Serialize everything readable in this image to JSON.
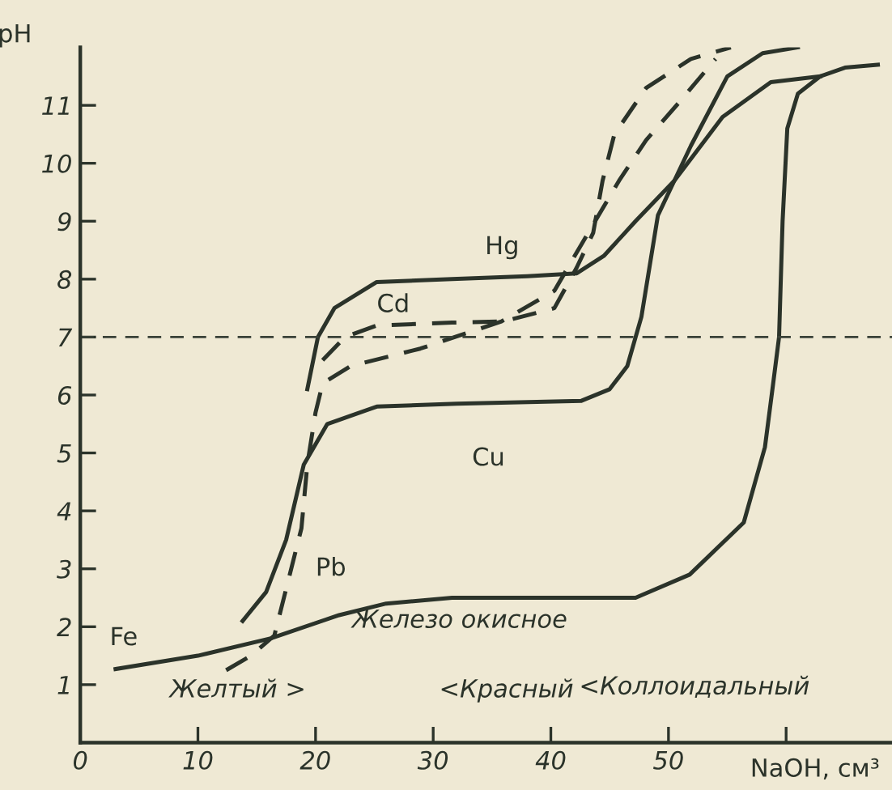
{
  "chart_data": {
    "type": "line",
    "xlabel": "NaOH, см³",
    "ylabel": "pH",
    "xlim": [
      0,
      69
    ],
    "ylim": [
      0,
      12
    ],
    "xticks": [
      0,
      10,
      20,
      30,
      40,
      50,
      {
        "value": 60,
        "label": null
      }
    ],
    "yticks": [
      1,
      2,
      3,
      4,
      5,
      6,
      7,
      8,
      9,
      10,
      11
    ],
    "grid": false,
    "legend": false,
    "marker": "none",
    "ref_lines": [
      {
        "axis": "y",
        "value": 7,
        "color": "#3a4238",
        "line_style": "dashed"
      }
    ],
    "series": [
      {
        "name": "Fe",
        "color": "#2b332a",
        "line_style": "solid",
        "x": [
          3.0,
          10,
          16.2,
          22,
          26,
          31.6,
          40,
          47.2,
          51.8,
          56.4,
          58.2,
          58.9,
          59.4,
          59.7,
          60.1,
          61,
          62.9,
          65,
          67.8
        ],
        "values": [
          1.27,
          1.5,
          1.8,
          2.2,
          2.4,
          2.5,
          2.5,
          2.5,
          2.9,
          3.8,
          5.1,
          6.2,
          7.0,
          9.0,
          10.6,
          11.2,
          11.5,
          11.65,
          11.7
        ]
      },
      {
        "name": "Hg",
        "color": "#2b332a",
        "line_style": "solid",
        "x": [
          19.3,
          20.2,
          21.6,
          25.2,
          31.6,
          38,
          42.2,
          44.5,
          47.2,
          50.5,
          54.6,
          58.7,
          62.9
        ],
        "values": [
          6.1,
          7.0,
          7.5,
          7.95,
          8.0,
          8.05,
          8.1,
          8.4,
          9.0,
          9.7,
          10.8,
          11.4,
          11.5
        ]
      },
      {
        "name": "Cu",
        "color": "#2b332a",
        "line_style": "solid",
        "x": [
          13.8,
          15.8,
          17.5,
          19.0,
          21.0,
          25.2,
          32,
          42.6,
          45,
          46.5,
          47.7,
          49.1,
          51.9,
          55.0,
          58,
          61
        ],
        "values": [
          2.1,
          2.6,
          3.5,
          4.8,
          5.5,
          5.8,
          5.85,
          5.9,
          6.1,
          6.5,
          7.35,
          9.1,
          10.3,
          11.5,
          11.9,
          12.0
        ]
      },
      {
        "name": "Cd",
        "color": "#2b332a",
        "line_style": "dashed",
        "x": [
          20.6,
          22.5,
          25.2,
          31.6,
          36,
          40.3,
          42.2,
          43.6,
          44.4,
          45.4,
          48.1,
          51.9,
          55.3
        ],
        "values": [
          6.6,
          7.0,
          7.2,
          7.25,
          7.27,
          7.5,
          8.2,
          8.8,
          9.7,
          10.5,
          11.3,
          11.8,
          12.0
        ]
      },
      {
        "name": "Pb",
        "color": "#2b332a",
        "line_style": "dashed",
        "x": [
          12.4,
          14.5,
          16.5,
          18.8,
          19.3,
          20,
          20.6,
          23,
          28.9,
          35.8,
          40.3,
          42.6,
          45.8,
          48.1,
          50.9,
          54
        ],
        "values": [
          1.25,
          1.5,
          1.85,
          3.7,
          4.8,
          5.7,
          6.2,
          6.5,
          6.8,
          7.27,
          7.8,
          8.6,
          9.7,
          10.4,
          11.05,
          11.8
        ]
      }
    ],
    "annotations": [
      "Железо окисное",
      "Желтый >",
      "<Красный",
      "<Коллоидальный"
    ]
  }
}
